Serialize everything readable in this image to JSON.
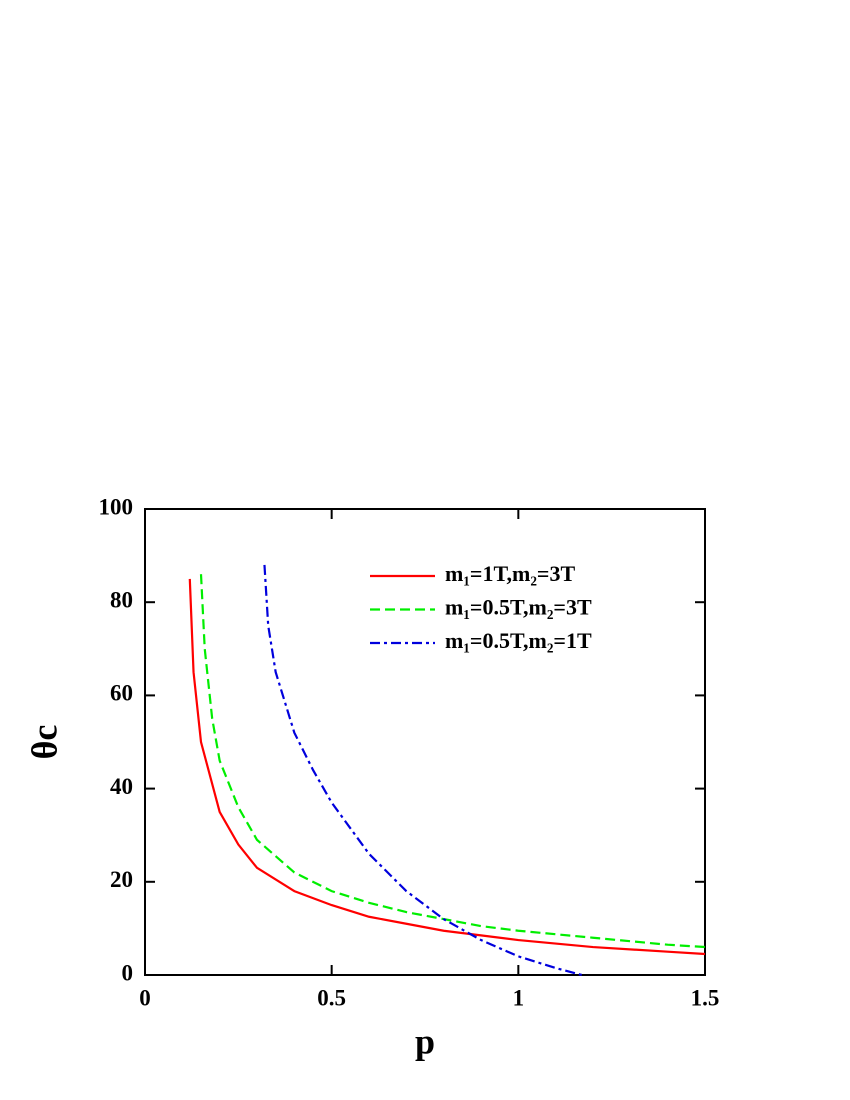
{
  "chart_data": {
    "type": "line",
    "xlabel": "p",
    "ylabel": "θc",
    "xlim": [
      0,
      1.5
    ],
    "xticks": [
      0,
      0.5,
      1,
      1.5
    ],
    "ylim": [
      0,
      100
    ],
    "yticks": [
      0,
      20,
      40,
      60,
      80,
      100
    ],
    "legend": "upper right",
    "series": [
      {
        "name": "m₁=1T,m₂=3T",
        "color": "#ff0000",
        "dash": "solid",
        "x": [
          0.12,
          0.13,
          0.15,
          0.2,
          0.25,
          0.3,
          0.4,
          0.5,
          0.6,
          0.7,
          0.8,
          0.9,
          1.0,
          1.2,
          1.4,
          1.5
        ],
        "values": [
          85,
          65,
          50,
          35,
          28,
          23,
          18,
          15,
          12.5,
          11,
          9.5,
          8.5,
          7.5,
          6,
          5,
          4.5
        ]
      },
      {
        "name": "m₁=0.5T,m₂=3T",
        "color": "#00ee00",
        "dash": "dashed",
        "x": [
          0.15,
          0.16,
          0.18,
          0.2,
          0.25,
          0.3,
          0.4,
          0.5,
          0.6,
          0.7,
          0.8,
          0.9,
          1.0,
          1.2,
          1.4,
          1.5
        ],
        "values": [
          86,
          70,
          55,
          46,
          36,
          29,
          22,
          18,
          15.5,
          13.5,
          12,
          10.5,
          9.5,
          8,
          6.5,
          6
        ]
      },
      {
        "name": "m₁=0.5T,m₂=1T",
        "color": "#0000dd",
        "dash": "dashdot",
        "x": [
          0.32,
          0.33,
          0.35,
          0.4,
          0.45,
          0.5,
          0.6,
          0.7,
          0.8,
          0.9,
          1.0,
          1.1,
          1.17
        ],
        "values": [
          88,
          75,
          65,
          52,
          44,
          37,
          26,
          18,
          12,
          7.5,
          4,
          1.5,
          0
        ]
      }
    ]
  }
}
